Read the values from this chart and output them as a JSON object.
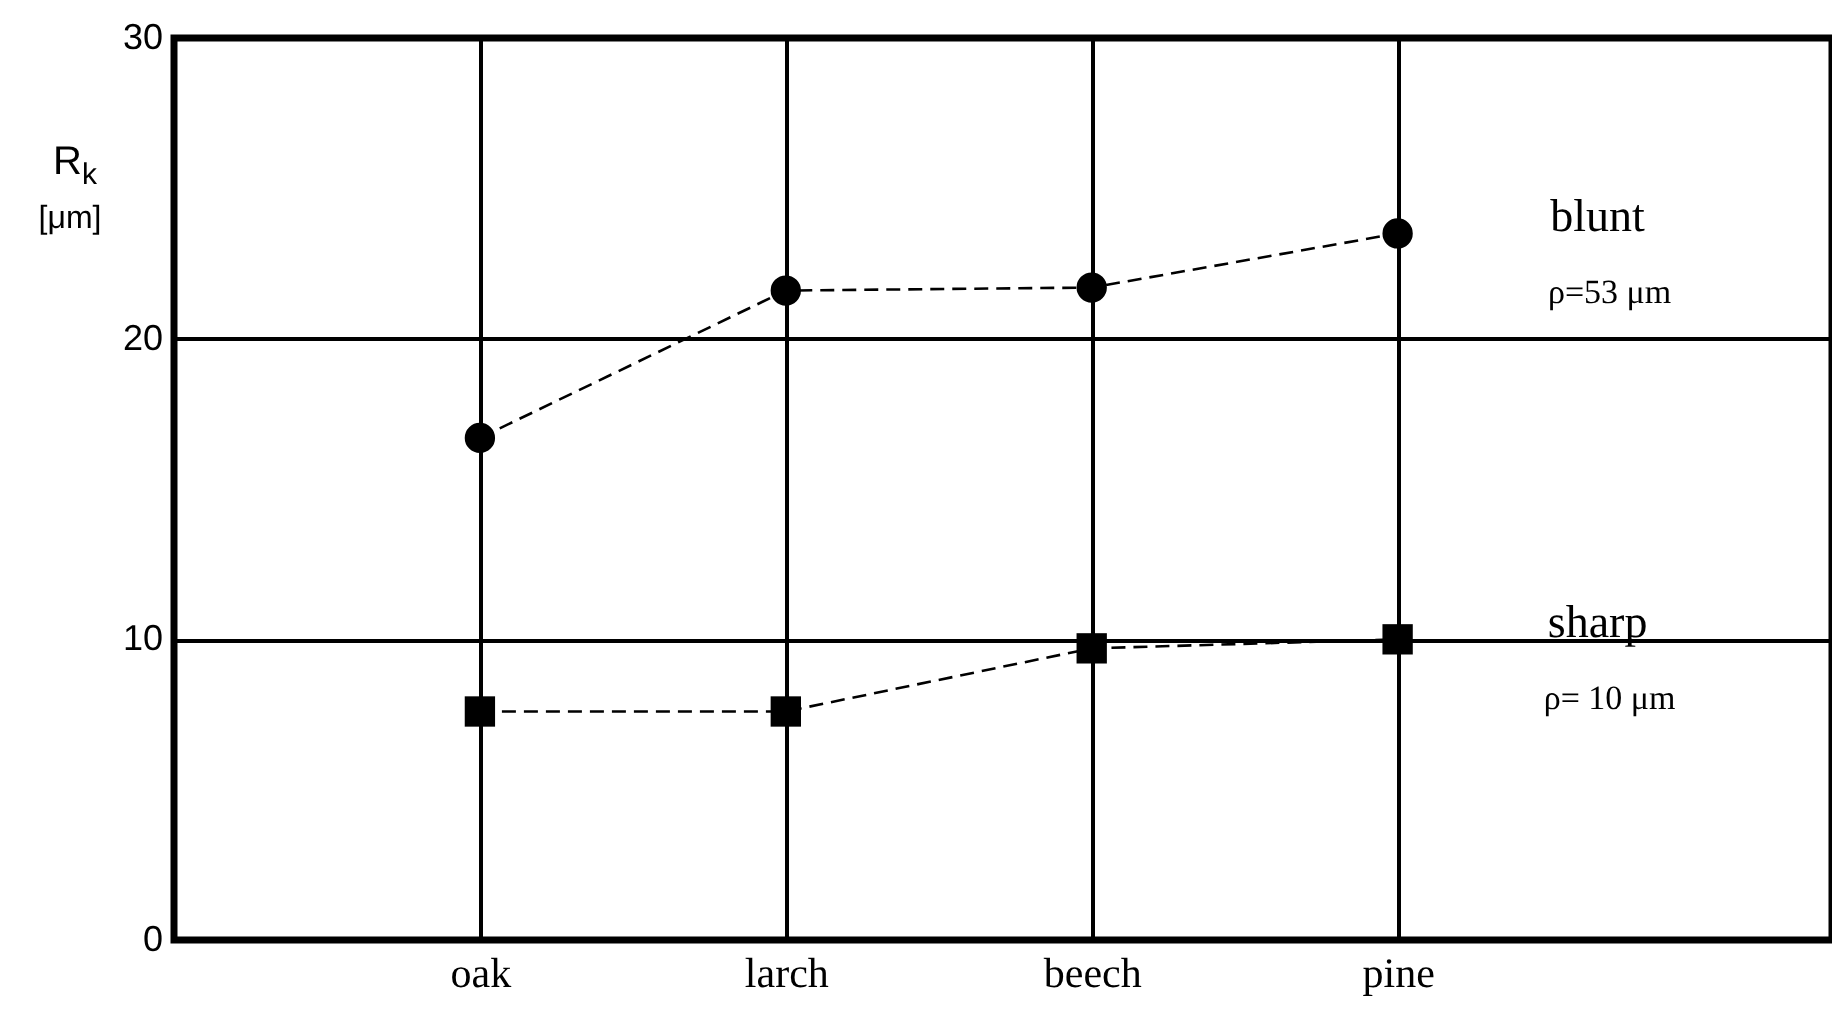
{
  "chart_data": {
    "type": "line",
    "ylabel": "R$_{k}$ [μm]",
    "categories": [
      "oak",
      "larch",
      "beech",
      "pine"
    ],
    "series": [
      {
        "name": "blunt",
        "color": "#000000",
        "marker": "circle",
        "values": [
          16.7,
          21.6,
          21.7,
          23.5
        ]
      },
      {
        "name": "sharp",
        "color": "#000000",
        "marker": "square",
        "values": [
          7.6,
          7.6,
          9.7,
          10.0
        ]
      }
    ],
    "annotations": [
      "ρ=53 μm",
      "ρ= 10 μm"
    ],
    "ylim": [
      0,
      30
    ],
    "yticks": [
      0,
      10,
      20,
      30
    ],
    "grid": true,
    "line_style": "dashed"
  }
}
